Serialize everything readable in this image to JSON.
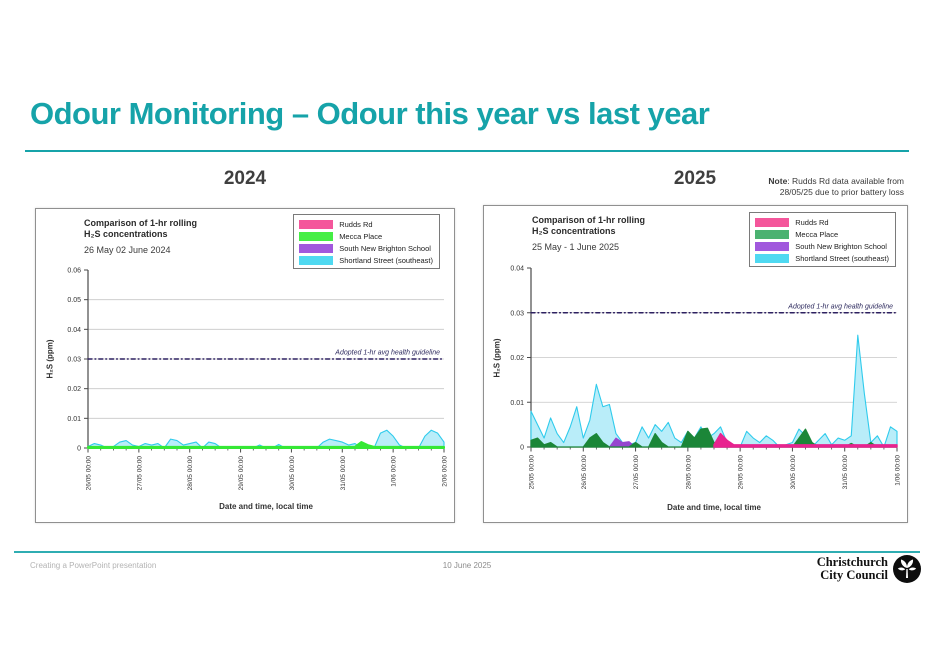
{
  "slide": {
    "title": "Odour Monitoring – Odour this year vs last year",
    "note": {
      "bold": "Note",
      "line1_rest": ": Rudds Rd data available from",
      "line2": "28/05/25 due to prior battery loss"
    }
  },
  "footer": {
    "left_text": "Creating a PowerPoint presentation",
    "date": "10 June 2025",
    "logo_line1": "Christchurch",
    "logo_line2": "City Council"
  },
  "colors": {
    "accent_teal": "#16a3a9",
    "guideline": "#2d2060",
    "gridline": "#c7c7c7",
    "axis": "#4a4a4a"
  },
  "chart_data": [
    {
      "type": "area",
      "heading": "2024",
      "title_line1": "Comparison of 1-hr rolling",
      "title_line2": "H₂S concentrations",
      "subtitle": "26 May 02 June 2024",
      "xlabel": "Date and time, local time",
      "ylabel": "H₂S (ppm)",
      "ylim": [
        0,
        0.06
      ],
      "ytick_step": 0.01,
      "x_tick_labels": [
        "26/05 00:00",
        "27/05 00:00",
        "28/05 00:00",
        "29/05 00:00",
        "30/05 00:00",
        "31/05 00:00",
        "1/06 00:00",
        "2/06 00:00"
      ],
      "points_per_day": 8,
      "guideline": {
        "value": 0.03,
        "label": "Adopted 1-hr avg health guideline"
      },
      "legend": [
        {
          "name": "Rudds Rd",
          "color": "#f4569b"
        },
        {
          "name": "Mecca Place",
          "color": "#45ee45"
        },
        {
          "name": "South New Brighton School",
          "color": "#a158dd"
        },
        {
          "name": "Shortland Street (southeast)",
          "color": "#4fd9f1"
        }
      ],
      "series": [
        {
          "name": "Shortland Street (southeast)",
          "color": "#2fcbec",
          "fill": "#b9edf9",
          "stroke_width": 1.1,
          "values": [
            0.0005,
            0.0015,
            0.001,
            0,
            0.0005,
            0.002,
            0.0025,
            0.001,
            0.0005,
            0.0015,
            0.001,
            0.0015,
            0,
            0.003,
            0.0025,
            0.001,
            0.0015,
            0.002,
            0,
            0.002,
            0.0015,
            0,
            0.0005,
            0,
            0,
            0.0005,
            0,
            0.001,
            0,
            0,
            0.0012,
            0,
            0,
            0,
            0.0005,
            0,
            0,
            0.002,
            0.003,
            0.0025,
            0.002,
            0.001,
            0.0015,
            0,
            0.0005,
            0,
            0.005,
            0.006,
            0.004,
            0.001,
            0,
            0.0005,
            0,
            0.004,
            0.006,
            0.005,
            0.002
          ]
        },
        {
          "name": "South New Brighton School",
          "color": "#9646cf",
          "fill": "#9646cf",
          "stroke_width": 1,
          "values": [
            0,
            0,
            0,
            0,
            0,
            0,
            0,
            0,
            0,
            0,
            0,
            0,
            0,
            0,
            0,
            0,
            0,
            0,
            0,
            0,
            0,
            0,
            0,
            0,
            0,
            0,
            0,
            0,
            0,
            0,
            0,
            0,
            0,
            0,
            0,
            0,
            0,
            0,
            0,
            0,
            0,
            0,
            0,
            0,
            0,
            0,
            0,
            0,
            0,
            0,
            0,
            0,
            0,
            0,
            0,
            0,
            0
          ]
        },
        {
          "name": "Rudds Rd",
          "color": "#e8238f",
          "fill": "#e8238f",
          "stroke_width": 1,
          "values": [
            0,
            0,
            0,
            0,
            0,
            0,
            0,
            0,
            0,
            0,
            0,
            0,
            0,
            0,
            0,
            0,
            0,
            0,
            0,
            0,
            0,
            0,
            0,
            0,
            0,
            0,
            0,
            0,
            0,
            0,
            0,
            0,
            0,
            0,
            0,
            0,
            0,
            0,
            0,
            0,
            0,
            0,
            0,
            0,
            0,
            0,
            0,
            0,
            0,
            0,
            0,
            0,
            0,
            0,
            0,
            0,
            0
          ]
        },
        {
          "name": "Mecca Place",
          "color": "#35e835",
          "fill": "#35e835",
          "stroke_width": 2,
          "values": [
            0.0004,
            0.0004,
            0.0004,
            0.0004,
            0.0004,
            0.0004,
            0.0004,
            0.0004,
            0.0004,
            0.0004,
            0.0004,
            0.0004,
            0.0004,
            0.0004,
            0.0004,
            0.0004,
            0.0004,
            0.0004,
            0.0004,
            0.0004,
            0.0004,
            0.0004,
            0.0004,
            0.0004,
            0.0004,
            0.0004,
            0.0004,
            0.0004,
            0.0004,
            0.0004,
            0.0004,
            0.0004,
            0.0004,
            0.0004,
            0.0004,
            0.0004,
            0.0004,
            0.0004,
            0.0004,
            0.0004,
            0.0004,
            0.0004,
            0.0004,
            0.002,
            0.001,
            0.0004,
            0.0004,
            0.0004,
            0.0004,
            0.0004,
            0.0004,
            0.0004,
            0.0004,
            0.0004,
            0.0004,
            0.0004,
            0.0004
          ]
        }
      ]
    },
    {
      "type": "area",
      "heading": "2025",
      "title_line1": "Comparison of 1-hr rolling",
      "title_line2": "H₂S concentrations",
      "subtitle": "25 May - 1 June 2025",
      "xlabel": "Date and time, local time",
      "ylabel": "H₂S (ppm)",
      "ylim": [
        0,
        0.04
      ],
      "ytick_step": 0.01,
      "x_tick_labels": [
        "25/05 00:00",
        "26/05 00:00",
        "27/05 00:00",
        "28/05 00:00",
        "29/05 00:00",
        "30/05 00:00",
        "31/05 00:00",
        "1/06 00:00"
      ],
      "points_per_day": 8,
      "guideline": {
        "value": 0.03,
        "label": "Adopted 1-hr avg health guideline"
      },
      "legend": [
        {
          "name": "Rudds Rd",
          "color": "#f4569b"
        },
        {
          "name": "Mecca Place",
          "color": "#4bb271"
        },
        {
          "name": "South New Brighton School",
          "color": "#a158dd"
        },
        {
          "name": "Shortland Street (southeast)",
          "color": "#4fd9f1"
        }
      ],
      "series": [
        {
          "name": "Shortland Street (southeast)",
          "color": "#2fcbec",
          "fill": "#b9edf9",
          "stroke_width": 1.1,
          "values": [
            0.008,
            0.005,
            0.002,
            0.0065,
            0.003,
            0.001,
            0.0045,
            0.009,
            0.002,
            0.006,
            0.014,
            0.009,
            0.0095,
            0.003,
            0.001,
            0.0005,
            0.001,
            0.0045,
            0.002,
            0.005,
            0.0035,
            0.0055,
            0.002,
            0.001,
            0.0035,
            0.002,
            0.0045,
            0.002,
            0.003,
            0.0045,
            0.001,
            0.0005,
            0,
            0.0035,
            0.002,
            0.001,
            0.0025,
            0.0015,
            0,
            0.0005,
            0.001,
            0.004,
            0.0025,
            0,
            0.0015,
            0.003,
            0.0005,
            0.002,
            0.0015,
            0.0025,
            0.025,
            0.012,
            0.001,
            0.0025,
            0,
            0.0045,
            0.0035
          ]
        },
        {
          "name": "South New Brighton School",
          "color": "#9646cf",
          "fill": "#9646cf",
          "stroke_width": 1,
          "values": [
            0,
            0,
            0,
            0,
            0,
            0,
            0,
            0,
            0,
            0,
            0,
            0,
            0,
            0.002,
            0.001,
            0.0012,
            0,
            0,
            0,
            0,
            0,
            0,
            0,
            0,
            0,
            0,
            0,
            0.0012,
            0.0008,
            0,
            0.0005,
            0,
            0,
            0,
            0,
            0,
            0,
            0,
            0,
            0,
            0,
            0,
            0,
            0,
            0,
            0,
            0,
            0,
            0,
            0,
            0,
            0,
            0,
            0,
            0,
            0,
            0
          ]
        },
        {
          "name": "Mecca Place",
          "color": "#1b8638",
          "fill": "#1b8638",
          "stroke_width": 1.2,
          "values": [
            0.0015,
            0.002,
            0.0005,
            0.001,
            0,
            0,
            0,
            0,
            0,
            0.002,
            0.003,
            0.001,
            0,
            0,
            0,
            0,
            0.001,
            0,
            0,
            0.003,
            0.001,
            0,
            0,
            0,
            0.0035,
            0.002,
            0.004,
            0.0042,
            0.001,
            0,
            0,
            0,
            0,
            0,
            0,
            0,
            0,
            0,
            0,
            0,
            0,
            0.002,
            0.004,
            0.001,
            0,
            0,
            0,
            0,
            0,
            0.0008,
            0,
            0,
            0.001,
            0,
            0,
            0,
            0
          ]
        },
        {
          "name": "Rudds Rd",
          "color": "#e8238f",
          "fill": "#e8238f",
          "stroke_width": 1.4,
          "values": [
            null,
            null,
            null,
            null,
            null,
            null,
            null,
            null,
            null,
            null,
            null,
            null,
            null,
            null,
            null,
            null,
            null,
            null,
            null,
            null,
            null,
            null,
            null,
            null,
            null,
            null,
            null,
            null,
            0.0005,
            0.003,
            0.0015,
            0.0005,
            0.0005,
            0.0005,
            0.0005,
            0.0005,
            0.0005,
            0.0005,
            0.0005,
            0.0005,
            0.0005,
            0.0005,
            0.0005,
            0.0005,
            0.0005,
            0.0005,
            0.0005,
            0.0005,
            0.0005,
            0.0005,
            0.0005,
            0.0005,
            0.0005,
            0.0005,
            0.0005,
            0.0005,
            0.0005
          ]
        }
      ]
    }
  ]
}
